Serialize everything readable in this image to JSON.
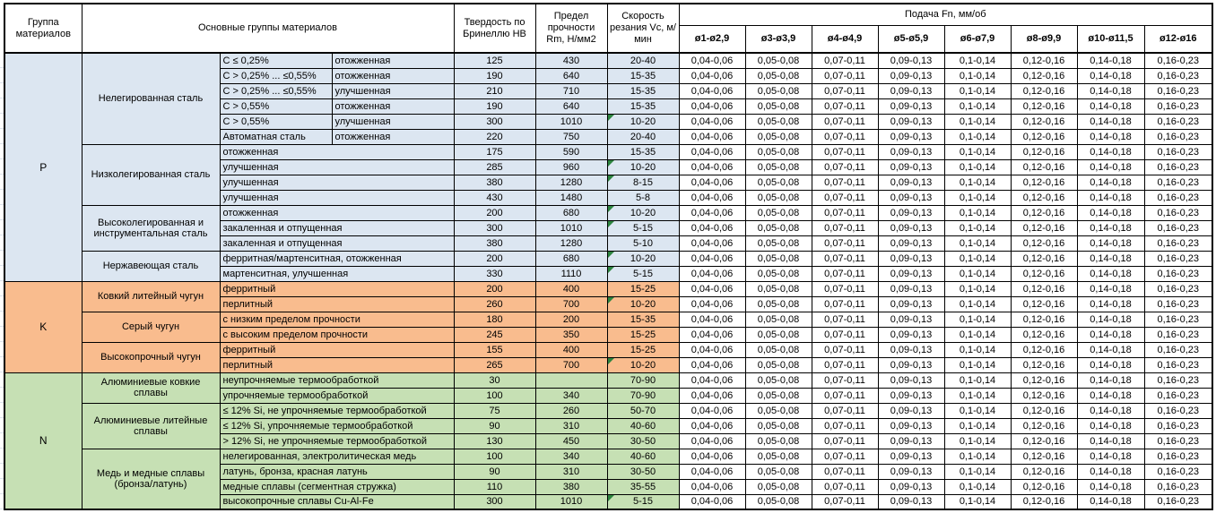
{
  "table": {
    "header": {
      "group": "Группа материалов",
      "materials": "Основные группы материалов",
      "hardness": "Твердость по Бринеллю HB",
      "strength": "Предел прочности Rm, Н/мм2",
      "speed": "Скорость резания Vc, м/мин",
      "feed": "Подача Fn, мм/об",
      "feed_cols": [
        "ø1-ø2,9",
        "ø3-ø3,9",
        "ø4-ø4,9",
        "ø5-ø5,9",
        "ø6-ø7,9",
        "ø8-ø9,9",
        "ø10-ø11,5",
        "ø12-ø16"
      ]
    },
    "feed_values": [
      "0,04-0,06",
      "0,05-0,08",
      "0,07-0,11",
      "0,09-0,13",
      "0,1-0,14",
      "0,12-0,16",
      "0,14-0,18",
      "0,16-0,23"
    ],
    "comment_indicator_color": "#2e8540",
    "groups": [
      {
        "code": "P",
        "color": "#dce6f1",
        "subgroups": [
          {
            "name": "Нелегированная сталь",
            "rows": [
              {
                "spec": "C ≤ 0,25%",
                "state": "отожженная",
                "hb": "125",
                "rm": "430",
                "vc": "20-40",
                "note": false
              },
              {
                "spec": "C > 0,25% ... ≤0,55%",
                "state": "отожженная",
                "hb": "190",
                "rm": "640",
                "vc": "15-35",
                "note": false
              },
              {
                "spec": "C > 0,25% ... ≤0,55%",
                "state": "улучшенная",
                "hb": "210",
                "rm": "710",
                "vc": "15-35",
                "note": false
              },
              {
                "spec": "C > 0,55%",
                "state": "отожженная",
                "hb": "190",
                "rm": "640",
                "vc": "15-35",
                "note": false
              },
              {
                "spec": "C > 0,55%",
                "state": "улучшенная",
                "hb": "300",
                "rm": "1010",
                "vc": "10-20",
                "note": true
              },
              {
                "spec": "Автоматная сталь",
                "state": "отожженная",
                "hb": "220",
                "rm": "750",
                "vc": "20-40",
                "note": false
              }
            ]
          },
          {
            "name": "Низколегированная сталь",
            "rows": [
              {
                "spec": "отожженная",
                "hb": "175",
                "rm": "590",
                "vc": "15-35",
                "note": false
              },
              {
                "spec": "улучшенная",
                "hb": "285",
                "rm": "960",
                "vc": "10-20",
                "note": true
              },
              {
                "spec": "улучшенная",
                "hb": "380",
                "rm": "1280",
                "vc": "8-15",
                "note": true
              },
              {
                "spec": "улучшенная",
                "hb": "430",
                "rm": "1480",
                "vc": "5-8",
                "note": false
              }
            ]
          },
          {
            "name": "Высоколегированная и инструментальная сталь",
            "rows": [
              {
                "spec": "отожженная",
                "hb": "200",
                "rm": "680",
                "vc": "10-20",
                "note": true
              },
              {
                "spec": "закаленная и отпущенная",
                "hb": "300",
                "rm": "1010",
                "vc": "5-15",
                "note": true
              },
              {
                "spec": "закаленная и отпущенная",
                "hb": "380",
                "rm": "1280",
                "vc": "5-10",
                "note": false
              }
            ]
          },
          {
            "name": "Нержавеющая сталь",
            "rows": [
              {
                "spec": "ферритная/мартенситная, отожженная",
                "hb": "200",
                "rm": "680",
                "vc": "10-20",
                "note": true
              },
              {
                "spec": "мартенситная, улучшенная",
                "hb": "330",
                "rm": "1110",
                "vc": "5-15",
                "note": true
              }
            ]
          }
        ]
      },
      {
        "code": "K",
        "color": "#f9bc8e",
        "subgroups": [
          {
            "name": "Ковкий литейный чугун",
            "rows": [
              {
                "spec": "ферритный",
                "hb": "200",
                "rm": "400",
                "vc": "15-25",
                "note": false
              },
              {
                "spec": "перлитный",
                "hb": "260",
                "rm": "700",
                "vc": "10-20",
                "note": true
              }
            ]
          },
          {
            "name": "Серый чугун",
            "rows": [
              {
                "spec": "с низким пределом прочности",
                "hb": "180",
                "rm": "200",
                "vc": "15-35",
                "note": false
              },
              {
                "spec": "с высоким пределом прочности",
                "hb": "245",
                "rm": "350",
                "vc": "15-25",
                "note": false
              }
            ]
          },
          {
            "name": "Высокопрочный чугун",
            "rows": [
              {
                "spec": "ферритный",
                "hb": "155",
                "rm": "400",
                "vc": "15-25",
                "note": false
              },
              {
                "spec": "перлитный",
                "hb": "265",
                "rm": "700",
                "vc": "10-20",
                "note": true
              }
            ]
          }
        ]
      },
      {
        "code": "N",
        "color": "#c6e0b4",
        "subgroups": [
          {
            "name": "Алюминиевые ковкие сплавы",
            "rows": [
              {
                "spec": "неупрочняемые термообработкой",
                "hb": "30",
                "rm": "",
                "vc": "70-90",
                "note": false
              },
              {
                "spec": "упрочняемые термообработкой",
                "hb": "100",
                "rm": "340",
                "vc": "70-90",
                "note": false
              }
            ]
          },
          {
            "name": "Алюминиевые литейные сплавы",
            "rows": [
              {
                "spec": "≤ 12% Si, не упрочняемые термообработкой",
                "hb": "75",
                "rm": "260",
                "vc": "50-70",
                "note": false
              },
              {
                "spec": "≤ 12% Si, упрочняемые термообработкой",
                "hb": "90",
                "rm": "310",
                "vc": "40-60",
                "note": false
              },
              {
                "spec": "> 12% Si, не упрочняемые термообработкой",
                "hb": "130",
                "rm": "450",
                "vc": "30-50",
                "note": false
              }
            ]
          },
          {
            "name": "Медь и медные сплавы (бронза/латунь)",
            "rows": [
              {
                "spec": "нелегированная, электролитическая медь",
                "hb": "100",
                "rm": "340",
                "vc": "40-60",
                "note": false
              },
              {
                "spec": "латунь, бронза, красная латунь",
                "hb": "90",
                "rm": "310",
                "vc": "30-50",
                "note": false
              },
              {
                "spec": "медные сплавы (сегментная стружка)",
                "hb": "110",
                "rm": "380",
                "vc": "35-55",
                "note": false
              },
              {
                "spec": "высокопрочные сплавы Cu-Al-Fe",
                "hb": "300",
                "rm": "1010",
                "vc": "5-15",
                "note": true
              }
            ]
          }
        ]
      }
    ]
  }
}
